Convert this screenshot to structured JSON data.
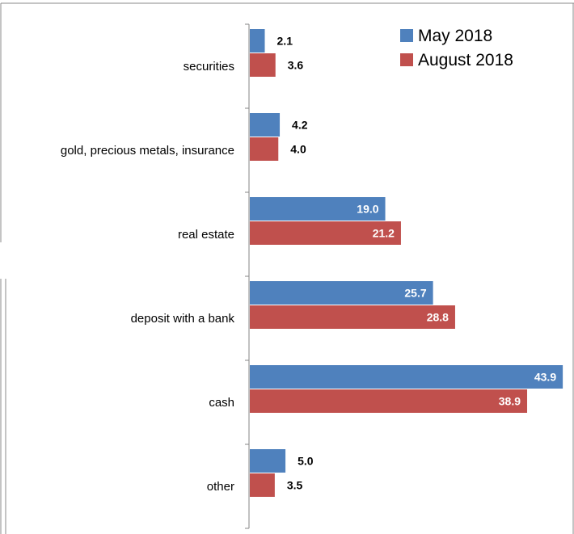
{
  "chart_data": {
    "type": "bar",
    "orientation": "horizontal",
    "categories": [
      "securities",
      "gold, precious metals, insurance",
      "real estate",
      "deposit with a bank",
      "cash",
      "other"
    ],
    "series": [
      {
        "name": "May 2018",
        "color": "#4F81BD",
        "values": [
          2.1,
          4.2,
          19.0,
          25.7,
          43.9,
          5.0
        ]
      },
      {
        "name": "August 2018",
        "color": "#C0504D",
        "values": [
          3.6,
          4.0,
          21.2,
          28.8,
          38.9,
          3.5
        ]
      }
    ],
    "data_labels": {
      "May 2018": [
        "2.1",
        "4.2",
        "19.0",
        "25.7",
        "43.9",
        "5.0"
      ],
      "August 2018": [
        "3.6",
        "4.0",
        "21.2",
        "28.8",
        "38.9",
        "3.5"
      ]
    },
    "xlim": [
      0,
      44
    ],
    "grid": false,
    "legend_position": "top-right"
  }
}
